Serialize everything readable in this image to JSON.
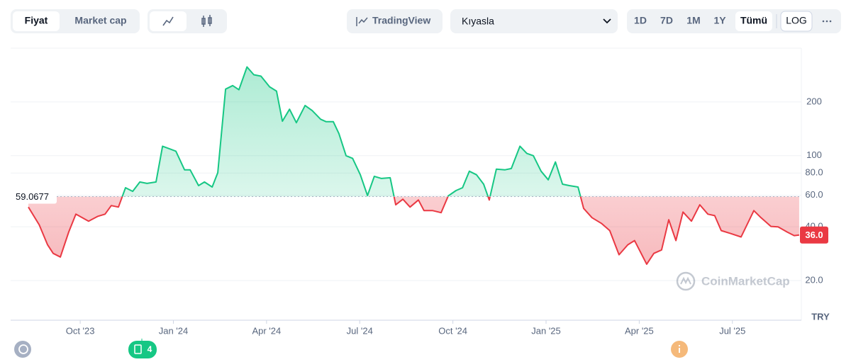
{
  "ui": {
    "tabs": [
      "Fiyat",
      "Market cap"
    ],
    "tradingview": "TradingView",
    "compare": "Kıyasla",
    "ranges": [
      "1D",
      "7D",
      "1M",
      "1Y",
      "Tümü"
    ],
    "log": "LOG",
    "watermark": "CoinMarketCap",
    "news_count": 4
  },
  "chart_data": {
    "type": "line",
    "log_scale": true,
    "currency": "TRY",
    "x": [
      -1.67,
      -1.32,
      -1.05,
      -0.87,
      -0.64,
      -0.37,
      -0.14,
      0.27,
      0.57,
      0.8,
      1.0,
      1.23,
      1.46,
      1.69,
      1.92,
      2.15,
      2.44,
      2.65,
      2.9,
      3.08,
      3.36,
      3.54,
      3.81,
      4.0,
      4.25,
      4.43,
      4.68,
      4.91,
      5.11,
      5.37,
      5.59,
      5.82,
      6.1,
      6.32,
      6.51,
      6.74,
      6.96,
      7.24,
      7.47,
      7.74,
      7.92,
      8.15,
      8.33,
      8.56,
      8.77,
      9.02,
      9.25,
      9.47,
      9.7,
      9.98,
      10.16,
      10.39,
      10.62,
      10.89,
      11.07,
      11.35,
      11.62,
      11.85,
      12.1,
      12.31,
      12.53,
      12.76,
      12.99,
      13.17,
      13.4,
      13.68,
      13.88,
      14.16,
      14.38,
      14.59,
      14.84,
      15.07,
      15.3,
      15.53,
      15.75,
      16.03,
      16.21,
      16.48,
      16.78,
      17.05,
      17.35,
      17.63,
      17.85,
      18.24,
      18.47,
      18.72,
      18.95,
      19.18,
      19.41,
      19.68,
      19.95,
      20.21,
      20.43,
      20.64,
      20.94,
      21.28,
      21.69,
      21.92,
      22.24,
      22.47,
      22.76,
      22.99,
      23.15
    ],
    "values": [
      51.6,
      41,
      31.7,
      28.4,
      27.1,
      37.4,
      47.1,
      43,
      45.8,
      47.1,
      52.6,
      51.6,
      66.2,
      63.2,
      71.3,
      70,
      71.3,
      113,
      109,
      106,
      83.4,
      83.4,
      68,
      71.3,
      66.8,
      80.4,
      236,
      247,
      234,
      314,
      284,
      279,
      243,
      230,
      156,
      182,
      153,
      191,
      179,
      160,
      155,
      155,
      133,
      100,
      96.6,
      78.2,
      59.8,
      76.7,
      74.6,
      75.3,
      53.1,
      57.1,
      51.6,
      56.5,
      49.3,
      49.3,
      48,
      59.6,
      63.8,
      66.2,
      81.9,
      78.2,
      69.3,
      56.5,
      84.1,
      83.4,
      84.8,
      113,
      103,
      100,
      81.9,
      73.3,
      92.3,
      69.3,
      68,
      66.8,
      50.7,
      45,
      41.8,
      38.1,
      27.9,
      31.7,
      33.5,
      24.7,
      28.4,
      29.7,
      43.8,
      33.5,
      48.4,
      43,
      53.1,
      47.1,
      46.2,
      38.1,
      36.7,
      35.1,
      49.3,
      45,
      40.2,
      40,
      37.4,
      35.7,
      36
    ],
    "up_color": "#16c784",
    "down_color": "#ea3943",
    "reference_line": 59.0677,
    "current_price": {
      "value": 36,
      "label": "36.0"
    },
    "xlim": [
      -2.24,
      23.22
    ],
    "xticks": [
      {
        "value": 0,
        "label": "Oct '23"
      },
      {
        "value": 3,
        "label": "Jan '24"
      },
      {
        "value": 6,
        "label": "Apr '24"
      },
      {
        "value": 9,
        "label": "Jul '24"
      },
      {
        "value": 12,
        "label": "Oct '24"
      },
      {
        "value": 15,
        "label": "Jan '25"
      },
      {
        "value": 18,
        "label": "Apr '25"
      },
      {
        "value": 21,
        "label": "Jul '25"
      }
    ],
    "ylim": [
      12,
      400
    ],
    "yticks": [
      {
        "value": 20,
        "label": "20.0"
      },
      {
        "value": 40,
        "label": "40.0"
      },
      {
        "value": 60,
        "label": "60.0"
      },
      {
        "value": 80,
        "label": "80.0"
      },
      100,
      200
    ],
    "grid": true
  }
}
